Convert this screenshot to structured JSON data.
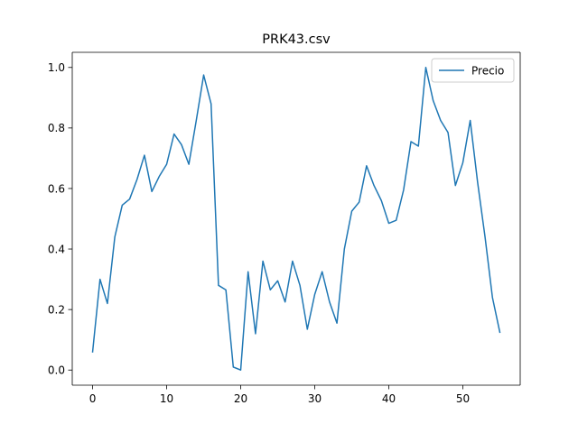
{
  "chart_data": {
    "type": "line",
    "title": "PRK43.csv",
    "xlabel": "",
    "ylabel": "",
    "xlim": [
      -2.75,
      57.75
    ],
    "ylim": [
      -0.05,
      1.05
    ],
    "x_ticks": [
      0,
      10,
      20,
      30,
      40,
      50
    ],
    "y_ticks": [
      0.0,
      0.2,
      0.4,
      0.6,
      0.8,
      1.0
    ],
    "x_tick_labels": [
      "0",
      "10",
      "20",
      "30",
      "40",
      "50"
    ],
    "y_tick_labels": [
      "0.0",
      "0.2",
      "0.4",
      "0.6",
      "0.8",
      "1.0"
    ],
    "grid": false,
    "legend_position": "top-right",
    "series": [
      {
        "name": "Precio",
        "color": "#1f77b4",
        "x": [
          0,
          1,
          2,
          3,
          4,
          5,
          6,
          7,
          8,
          9,
          10,
          11,
          12,
          13,
          14,
          15,
          16,
          17,
          18,
          19,
          20,
          21,
          22,
          23,
          24,
          25,
          26,
          27,
          28,
          29,
          30,
          31,
          32,
          33,
          34,
          35,
          36,
          37,
          38,
          39,
          40,
          41,
          42,
          43,
          44,
          45,
          46,
          47,
          48,
          49,
          50,
          51,
          52,
          53,
          54,
          55
        ],
        "values": [
          0.06,
          0.3,
          0.22,
          0.44,
          0.545,
          0.565,
          0.63,
          0.71,
          0.59,
          0.64,
          0.68,
          0.78,
          0.745,
          0.68,
          0.825,
          0.975,
          0.88,
          0.28,
          0.265,
          0.01,
          0.0,
          0.325,
          0.12,
          0.36,
          0.265,
          0.295,
          0.225,
          0.36,
          0.28,
          0.135,
          0.25,
          0.325,
          0.225,
          0.155,
          0.4,
          0.525,
          0.555,
          0.675,
          0.61,
          0.56,
          0.485,
          0.495,
          0.595,
          0.755,
          0.74,
          1.0,
          0.89,
          0.825,
          0.785,
          0.61,
          0.685,
          0.825,
          0.62,
          0.44,
          0.24,
          0.125
        ]
      }
    ]
  }
}
